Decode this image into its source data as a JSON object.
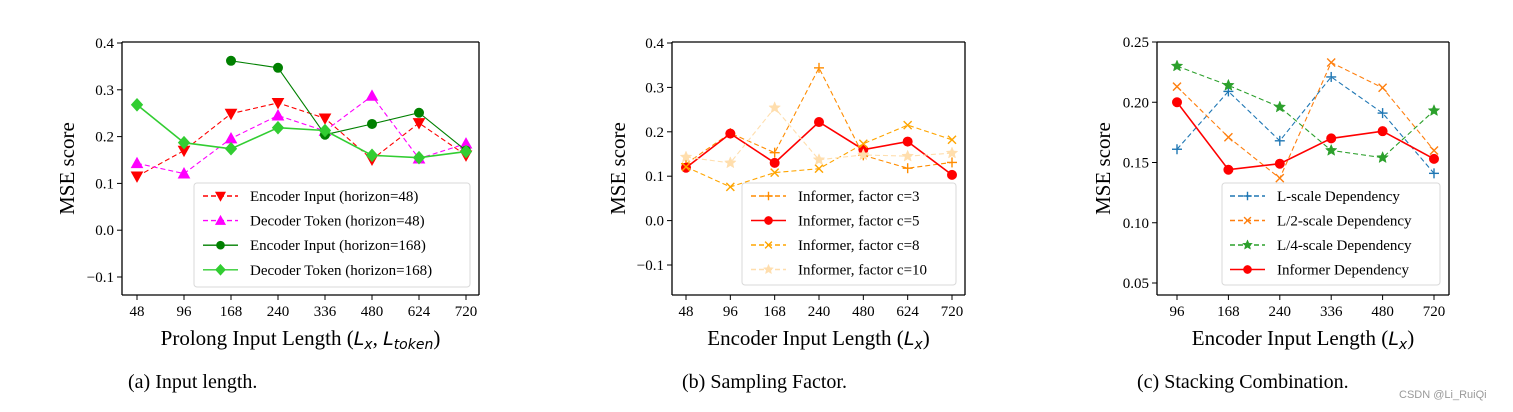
{
  "watermark": "CSDN @Li_RuiQi",
  "chart_data": [
    {
      "id": "a",
      "type": "line",
      "caption": "(a)  Input length.",
      "xlabel": "Prolong Input Length (L_x, L_token)",
      "xlabel_parts": {
        "prefix": "Prolong Input Length (",
        "v1": "L",
        "s1": "x",
        "sep": ", ",
        "v2": "L",
        "s2": "token",
        "suffix": ")"
      },
      "ylabel": "MSE score",
      "categories": [
        "48",
        "96",
        "168",
        "240",
        "336",
        "480",
        "624",
        "720"
      ],
      "ylim": [
        -0.138,
        0.4
      ],
      "yticks": [
        -0.1,
        0.0,
        0.1,
        0.2,
        0.3,
        0.4
      ],
      "ytick_labels": [
        "−0.1",
        "0.0",
        "0.1",
        "0.2",
        "0.3",
        "0.4"
      ],
      "grid": false,
      "legend_position": "lower-right",
      "series": [
        {
          "name": "Encoder Input (horizon=48)",
          "color": "#ff0000",
          "dash": "dashed",
          "marker": "triangle-down",
          "values": [
            0.115,
            0.17,
            0.249,
            0.272,
            0.239,
            0.151,
            0.229,
            0.16
          ]
        },
        {
          "name": "Decoder Token (horizon=48)",
          "color": "#ff00ff",
          "dash": "dashed",
          "marker": "triangle-up",
          "values": [
            0.143,
            0.121,
            0.196,
            0.245,
            0.212,
            0.287,
            0.153,
            0.185
          ]
        },
        {
          "name": "Encoder Input (horizon=168)",
          "color": "#008000",
          "dash": "solid",
          "marker": "circle",
          "values": [
            null,
            null,
            0.362,
            0.347,
            0.204,
            0.227,
            0.251,
            0.17
          ]
        },
        {
          "name": "Decoder Token (horizon=168)",
          "color": "#32cd32",
          "dash": "solid",
          "marker": "diamond",
          "values": [
            0.268,
            0.187,
            0.174,
            0.219,
            0.213,
            0.16,
            0.155,
            0.168
          ]
        }
      ]
    },
    {
      "id": "b",
      "type": "line",
      "caption": "(b)  Sampling Factor.",
      "xlabel": "Encoder Input Length (L_x)",
      "xlabel_parts": {
        "prefix": "Encoder Input Length (",
        "v1": "L",
        "s1": "x",
        "suffix": ")"
      },
      "ylabel": "MSE score",
      "categories": [
        "48",
        "96",
        "168",
        "240",
        "480",
        "624",
        "720"
      ],
      "ylim": [
        -0.17,
        0.4
      ],
      "yticks": [
        -0.1,
        0.0,
        0.1,
        0.2,
        0.3,
        0.4
      ],
      "ytick_labels": [
        "−0.1",
        "0.0",
        "0.1",
        "0.2",
        "0.3",
        "0.4"
      ],
      "grid": false,
      "legend_position": "lower-right",
      "series": [
        {
          "name": "Informer, factor c=3",
          "color": "#ff8c00",
          "dash": "dashed",
          "marker": "plus",
          "values": [
            0.128,
            0.197,
            0.153,
            0.344,
            0.147,
            0.118,
            0.131
          ]
        },
        {
          "name": "Informer, factor c=5",
          "color": "#ff0000",
          "dash": "solid",
          "marker": "circle",
          "values": [
            0.119,
            0.196,
            0.13,
            0.222,
            0.16,
            0.178,
            0.103
          ]
        },
        {
          "name": "Informer, factor c=8",
          "color": "#ffa500",
          "dash": "dashed",
          "marker": "x",
          "values": [
            0.121,
            0.076,
            0.108,
            0.117,
            0.173,
            0.215,
            0.182
          ]
        },
        {
          "name": "Informer, factor c=10",
          "color": "#ffdead",
          "dash": "dashed",
          "marker": "star",
          "values": [
            0.143,
            0.13,
            0.254,
            0.137,
            0.148,
            0.145,
            0.152
          ]
        }
      ]
    },
    {
      "id": "c",
      "type": "line",
      "caption": "(c)  Stacking Combination.",
      "xlabel": "Encoder Input Length (L_x)",
      "xlabel_parts": {
        "prefix": "Encoder Input Length (",
        "v1": "L",
        "s1": "x",
        "suffix": ")"
      },
      "ylabel": "MSE score",
      "categories": [
        "96",
        "168",
        "240",
        "336",
        "480",
        "720"
      ],
      "ylim": [
        0.045,
        0.25
      ],
      "yticks": [
        0.05,
        0.1,
        0.15,
        0.2,
        0.25
      ],
      "ytick_labels": [
        "0.05",
        "0.10",
        "0.15",
        "0.20",
        "0.25"
      ],
      "grid": false,
      "legend_position": "lower-right",
      "series": [
        {
          "name": "L-scale Dependency",
          "color": "#1f77b4",
          "dash": "dashed",
          "marker": "plus",
          "values": [
            0.161,
            0.209,
            0.168,
            0.221,
            0.191,
            0.141
          ]
        },
        {
          "name": "L/2-scale Dependency",
          "color": "#ff7f0e",
          "dash": "dashed",
          "marker": "x",
          "values": [
            0.213,
            0.171,
            0.137,
            0.233,
            0.212,
            0.16
          ]
        },
        {
          "name": "L/4-scale Dependency",
          "color": "#2ca02c",
          "dash": "dashed",
          "marker": "star",
          "values": [
            0.23,
            0.214,
            0.196,
            0.16,
            0.154,
            0.193
          ]
        },
        {
          "name": "Informer Dependency",
          "color": "#ff0000",
          "dash": "solid",
          "marker": "circle",
          "values": [
            0.2,
            0.144,
            0.149,
            0.17,
            0.176,
            0.153
          ]
        }
      ]
    }
  ]
}
